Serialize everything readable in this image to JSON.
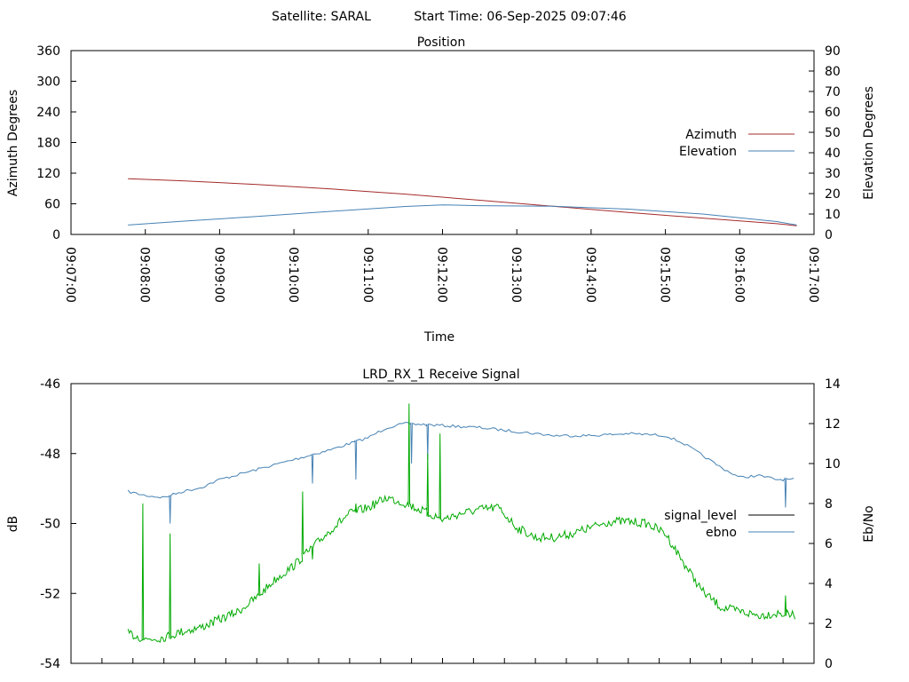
{
  "header": {
    "satellite": "Satellite: SARAL",
    "start_time": "Start Time: 06-Sep-2025 09:07:46"
  },
  "chart_data": [
    {
      "type": "line",
      "title": "Position",
      "xlabel": "Time",
      "ylabel": "Azimuth Degrees",
      "y2label": "Elevation Degrees",
      "x_ticks": [
        "09:07:00",
        "09:08:00",
        "09:09:00",
        "09:10:00",
        "09:11:00",
        "09:12:00",
        "09:13:00",
        "09:14:00",
        "09:15:00",
        "09:16:00",
        "09:17:00"
      ],
      "xlim": [
        "09:07:00",
        "09:17:00"
      ],
      "ylim": [
        0,
        360
      ],
      "y_ticks": [
        0,
        60,
        120,
        180,
        240,
        300,
        360
      ],
      "y2lim": [
        0,
        90
      ],
      "y2_ticks": [
        0,
        10,
        20,
        30,
        40,
        50,
        60,
        70,
        80,
        90
      ],
      "legend_position": "right",
      "series": [
        {
          "name": "Azimuth",
          "axis": "left",
          "color": "#a52a2a",
          "x": [
            "09:07:46",
            "09:08:30",
            "09:09:30",
            "09:10:30",
            "09:11:30",
            "09:12:30",
            "09:13:30",
            "09:14:30",
            "09:15:30",
            "09:16:30",
            "09:16:46"
          ],
          "y": [
            109,
            105,
            98,
            89,
            79,
            67,
            55,
            43,
            32,
            21,
            17
          ]
        },
        {
          "name": "Elevation",
          "axis": "right",
          "color": "#4682b4",
          "x": [
            "09:07:46",
            "09:08:30",
            "09:09:30",
            "09:10:30",
            "09:11:30",
            "09:12:00",
            "09:12:30",
            "09:13:30",
            "09:14:30",
            "09:15:30",
            "09:16:30",
            "09:16:46"
          ],
          "y": [
            4.6,
            6.5,
            8.8,
            11.3,
            13.7,
            14.5,
            14.1,
            13.8,
            12.4,
            10.0,
            6.3,
            4.6
          ]
        }
      ]
    },
    {
      "type": "line",
      "title": "LRD_RX_1 Receive Signal",
      "ylabel": "dB",
      "y2label": "Eb/No",
      "ylim": [
        -54,
        -46
      ],
      "y_ticks": [
        -54,
        -52,
        -50,
        -48,
        -46
      ],
      "y2lim": [
        0,
        14
      ],
      "y2_ticks": [
        0,
        2,
        4,
        6,
        8,
        10,
        12,
        14
      ],
      "x_minor_ticks": 23,
      "legend_position": "right",
      "series": [
        {
          "name": "signal_level",
          "axis": "left",
          "color": "#000000",
          "x": [],
          "y": []
        },
        {
          "name": "ebno",
          "axis": "right",
          "color": "#4682b4",
          "x": [
            "09:07:46",
            "09:08:00",
            "09:08:15",
            "09:08:30",
            "09:08:45",
            "09:09:00",
            "09:09:30",
            "09:10:00",
            "09:10:30",
            "09:11:00",
            "09:11:15",
            "09:11:30",
            "09:12:00",
            "09:12:30",
            "09:13:00",
            "09:13:30",
            "09:14:00",
            "09:14:30",
            "09:15:00",
            "09:15:15",
            "09:15:30",
            "09:15:45",
            "09:16:00",
            "09:16:15",
            "09:16:30",
            "09:16:45"
          ],
          "y": [
            8.6,
            8.4,
            8.3,
            8.6,
            8.8,
            9.2,
            9.7,
            10.2,
            10.7,
            11.3,
            11.8,
            12.0,
            11.9,
            11.8,
            11.6,
            11.4,
            11.4,
            11.5,
            11.4,
            11.0,
            10.4,
            9.8,
            9.3,
            9.4,
            9.2,
            9.2
          ],
          "dips": [
            {
              "x": "09:08:20",
              "y": 7.0
            },
            {
              "x": "09:10:15",
              "y": 9.0
            },
            {
              "x": "09:10:50",
              "y": 9.2
            },
            {
              "x": "09:11:35",
              "y": 10.0
            },
            {
              "x": "09:11:48",
              "y": 10.2
            },
            {
              "x": "09:16:37",
              "y": 7.8
            }
          ]
        },
        {
          "name": "",
          "axis": "right",
          "color": "#00aa00",
          "x": [
            "09:07:46",
            "09:08:00",
            "09:08:15",
            "09:08:30",
            "09:08:45",
            "09:09:00",
            "09:09:15",
            "09:09:30",
            "09:09:45",
            "09:10:00",
            "09:10:15",
            "09:10:30",
            "09:10:45",
            "09:11:00",
            "09:11:15",
            "09:11:30",
            "09:11:45",
            "09:12:00",
            "09:12:15",
            "09:12:30",
            "09:12:45",
            "09:13:00",
            "09:13:15",
            "09:13:30",
            "09:13:45",
            "09:14:00",
            "09:14:15",
            "09:14:30",
            "09:14:45",
            "09:15:00",
            "09:15:15",
            "09:15:30",
            "09:15:45",
            "09:16:00",
            "09:16:15",
            "09:16:30",
            "09:16:45"
          ],
          "y": [
            1.5,
            1.2,
            1.3,
            1.6,
            1.8,
            2.2,
            2.6,
            3.3,
            4.2,
            4.9,
            5.8,
            6.7,
            7.5,
            7.8,
            8.3,
            8.0,
            7.6,
            7.2,
            7.5,
            7.7,
            7.8,
            6.8,
            6.3,
            6.3,
            6.5,
            6.8,
            7.1,
            7.1,
            7.0,
            6.5,
            5.0,
            3.6,
            2.8,
            2.6,
            2.4,
            2.5,
            2.4
          ],
          "spikes": [
            {
              "x": "09:07:58",
              "y": 8.0
            },
            {
              "x": "09:08:20",
              "y": 6.5
            },
            {
              "x": "09:09:32",
              "y": 5.0
            },
            {
              "x": "09:10:07",
              "y": 8.6
            },
            {
              "x": "09:10:15",
              "y": 5.2
            },
            {
              "x": "09:10:50",
              "y": 8.0
            },
            {
              "x": "09:11:33",
              "y": 13.0
            },
            {
              "x": "09:11:48",
              "y": 10.5
            },
            {
              "x": "09:11:58",
              "y": 11.5
            },
            {
              "x": "09:16:37",
              "y": 3.4
            }
          ]
        }
      ]
    }
  ]
}
